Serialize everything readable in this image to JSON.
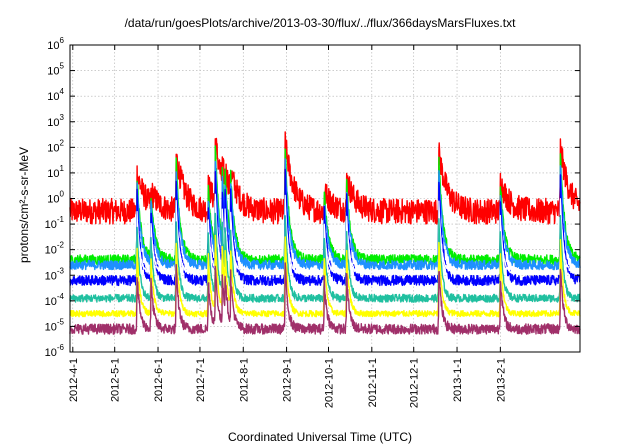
{
  "chart_data": {
    "type": "line",
    "title": "/data/run/goesPlots/archive/2013-03-30/flux/../flux/366daysMarsFluxes.txt",
    "xlabel": "Coordinated Universal Time (UTC)",
    "ylabel": "protons/cm²-s-sr-MeV",
    "y_scale": "log",
    "ylim": [
      1e-06,
      1000000.0
    ],
    "y_tick_exponents": [
      -6,
      -5,
      -4,
      -3,
      -2,
      -1,
      0,
      1,
      2,
      3,
      4,
      5,
      6
    ],
    "xlim": [
      "2012-03-30",
      "2013-03-30"
    ],
    "x_ticks": [
      "2012-4-1",
      "2012-5-1",
      "2012-6-1",
      "2012-7-1",
      "2012-8-1",
      "2012-9-1",
      "2012-10-1",
      "2012-11-1",
      "2012-12-1",
      "2013-1-1",
      "2013-2-1"
    ],
    "grid": true,
    "legend": "none",
    "events": [
      {
        "date": "2012-05-17",
        "log_peak": 1.0
      },
      {
        "date": "2012-05-27",
        "log_peak": 0.3
      },
      {
        "date": "2012-06-14",
        "log_peak": 1.7
      },
      {
        "date": "2012-07-07",
        "log_peak": 0.5
      },
      {
        "date": "2012-07-12",
        "log_peak": 2.3
      },
      {
        "date": "2012-07-17",
        "log_peak": 1.3
      },
      {
        "date": "2012-07-19",
        "log_peak": 1.2
      },
      {
        "date": "2012-07-23",
        "log_peak": 1.1
      },
      {
        "date": "2012-08-31",
        "log_peak": 2.2
      },
      {
        "date": "2012-09-28",
        "log_peak": 0.3
      },
      {
        "date": "2012-10-14",
        "log_peak": 0.8
      },
      {
        "date": "2012-12-19",
        "log_peak": 1.8
      },
      {
        "date": "2013-02-01",
        "log_peak": 0.7
      },
      {
        "date": "2013-03-16",
        "log_peak": 2.0
      }
    ],
    "series": [
      {
        "color": "#ff0000",
        "log_base": -0.5,
        "noise": 0.5,
        "amp": 1.0,
        "decay": 6
      },
      {
        "color": "#00ee00",
        "log_base": -2.4,
        "noise": 0.2,
        "amp": 0.95,
        "decay": 3
      },
      {
        "color": "#1e90ff",
        "log_base": -2.6,
        "noise": 0.18,
        "amp": 0.85,
        "decay": 3
      },
      {
        "color": "#0000ff",
        "log_base": -3.2,
        "noise": 0.2,
        "amp": 0.8,
        "decay": 2.5
      },
      {
        "color": "#ffffff",
        "log_base": -2.9,
        "noise": 0.08,
        "amp": 0.6,
        "decay": 2
      },
      {
        "color": "#20c0a0",
        "log_base": -3.9,
        "noise": 0.15,
        "amp": 0.55,
        "decay": 2
      },
      {
        "color": "#ffff00",
        "log_base": -4.5,
        "noise": 0.12,
        "amp": 0.45,
        "decay": 2
      },
      {
        "color": "#a0306a",
        "log_base": -5.1,
        "noise": 0.2,
        "amp": 0.35,
        "decay": 2
      }
    ]
  }
}
